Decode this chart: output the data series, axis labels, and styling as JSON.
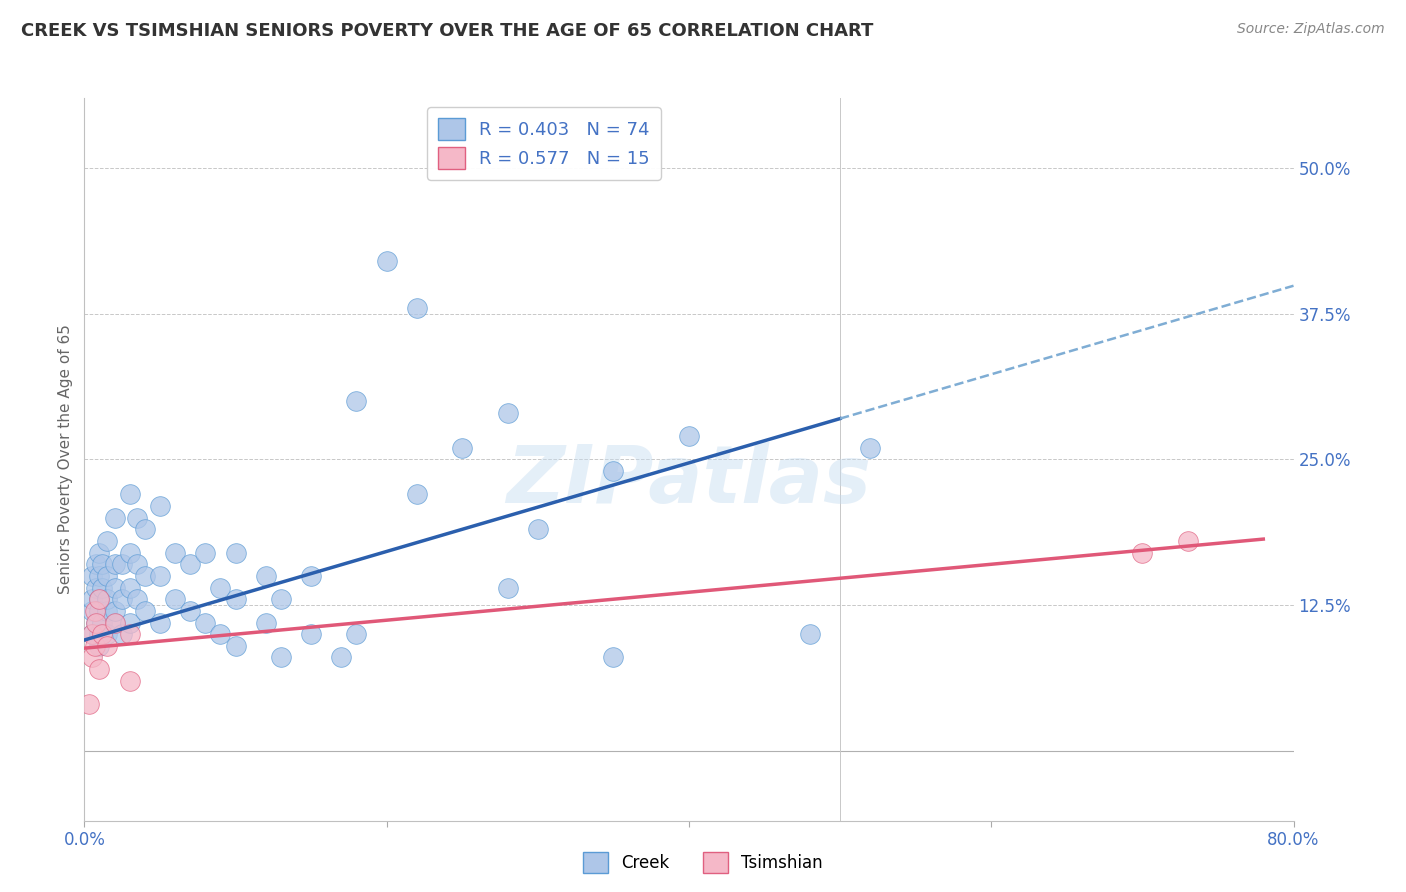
{
  "title": "CREEK VS TSIMSHIAN SENIORS POVERTY OVER THE AGE OF 65 CORRELATION CHART",
  "source_text": "Source: ZipAtlas.com",
  "ylabel": "Seniors Poverty Over the Age of 65",
  "xlim": [
    0.0,
    0.8
  ],
  "ylim": [
    -0.06,
    0.56
  ],
  "xticks": [
    0.0,
    0.2,
    0.4,
    0.6,
    0.8
  ],
  "xtick_labels": [
    "0.0%",
    "",
    "",
    "",
    "80.0%"
  ],
  "ytick_positions": [
    0.0,
    0.125,
    0.25,
    0.375,
    0.5
  ],
  "ytick_labels": [
    "",
    "12.5%",
    "25.0%",
    "37.5%",
    "50.0%"
  ],
  "creek_color": "#aec6e8",
  "creek_edge_color": "#5b9bd5",
  "tsimshian_color": "#f5b8c8",
  "tsimshian_edge_color": "#e06080",
  "creek_line_color": "#2b5fad",
  "creek_dash_color": "#7fadd4",
  "tsimshian_line_color": "#e05878",
  "R_creek": 0.403,
  "N_creek": 74,
  "R_tsimshian": 0.577,
  "N_tsimshian": 15,
  "watermark": "ZIPatlas",
  "background_color": "#ffffff",
  "grid_color": "#d0d0d0",
  "creek_line_intercept": 0.095,
  "creek_line_slope": 0.38,
  "tsimshian_line_intercept": 0.088,
  "tsimshian_line_slope": 0.12,
  "creek_scatter_x": [
    0.005,
    0.005,
    0.005,
    0.005,
    0.008,
    0.008,
    0.008,
    0.01,
    0.01,
    0.01,
    0.01,
    0.01,
    0.01,
    0.012,
    0.012,
    0.012,
    0.015,
    0.015,
    0.015,
    0.015,
    0.015,
    0.02,
    0.02,
    0.02,
    0.02,
    0.02,
    0.025,
    0.025,
    0.025,
    0.03,
    0.03,
    0.03,
    0.03,
    0.035,
    0.035,
    0.035,
    0.04,
    0.04,
    0.04,
    0.05,
    0.05,
    0.05,
    0.06,
    0.06,
    0.07,
    0.07,
    0.08,
    0.08,
    0.09,
    0.09,
    0.1,
    0.1,
    0.1,
    0.12,
    0.12,
    0.13,
    0.13,
    0.15,
    0.15,
    0.17,
    0.18,
    0.18,
    0.2,
    0.22,
    0.22,
    0.25,
    0.28,
    0.28,
    0.3,
    0.35,
    0.35,
    0.4,
    0.48,
    0.52
  ],
  "creek_scatter_y": [
    0.12,
    0.15,
    0.1,
    0.13,
    0.14,
    0.11,
    0.16,
    0.1,
    0.13,
    0.15,
    0.12,
    0.17,
    0.09,
    0.14,
    0.11,
    0.16,
    0.12,
    0.15,
    0.1,
    0.18,
    0.13,
    0.11,
    0.14,
    0.16,
    0.12,
    0.2,
    0.13,
    0.16,
    0.1,
    0.14,
    0.11,
    0.17,
    0.22,
    0.13,
    0.16,
    0.2,
    0.12,
    0.15,
    0.19,
    0.11,
    0.15,
    0.21,
    0.13,
    0.17,
    0.12,
    0.16,
    0.11,
    0.17,
    0.1,
    0.14,
    0.09,
    0.13,
    0.17,
    0.11,
    0.15,
    0.08,
    0.13,
    0.1,
    0.15,
    0.08,
    0.1,
    0.3,
    0.42,
    0.22,
    0.38,
    0.26,
    0.29,
    0.14,
    0.19,
    0.08,
    0.24,
    0.27,
    0.1,
    0.26
  ],
  "tsimshian_scatter_x": [
    0.003,
    0.005,
    0.005,
    0.007,
    0.007,
    0.008,
    0.01,
    0.01,
    0.012,
    0.015,
    0.02,
    0.03,
    0.7,
    0.73,
    0.03
  ],
  "tsimshian_scatter_y": [
    0.04,
    0.1,
    0.08,
    0.12,
    0.09,
    0.11,
    0.13,
    0.07,
    0.1,
    0.09,
    0.11,
    0.1,
    0.17,
    0.18,
    0.06
  ]
}
